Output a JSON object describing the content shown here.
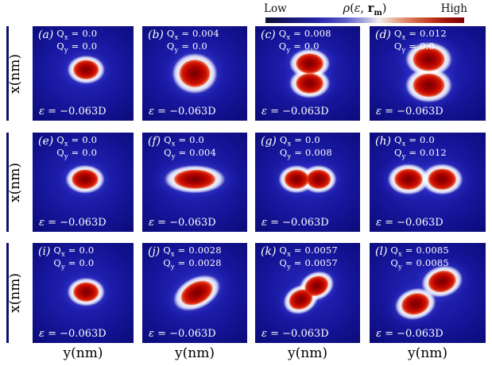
{
  "chart_data": {
    "type": "heatmap",
    "description": "4x3 grid of 2D probability-density heatmaps (blue-white-red colormap) for varying Qx, Qy",
    "title_parts": {
      "rho": "ρ",
      "lparen": "(",
      "eps": "ε",
      "comma": ", ",
      "r": "r",
      "msub": "m",
      "rparen": ")"
    },
    "colorbar": {
      "low_label": "Low",
      "high_label": "High",
      "gradient_stops": [
        "#0d0d33 0%",
        "#16166e 12%",
        "#2323a8 26%",
        "#5a5ac8 40%",
        "#a9a9dc 50%",
        "#f2efe9 57%",
        "#e8b39a 65%",
        "#d97757 73%",
        "#c23b22 83%",
        "#9b1105 92%",
        "#7e0000 100%"
      ]
    },
    "xlabel": "y(nm)",
    "ylabel": "x(nm)",
    "shared": {
      "q": "Q",
      "sub_x": "x",
      "sub_y": "y",
      "eq": " = ",
      "eps_sym": "ε"
    },
    "panel_background": "#0d0d80",
    "lobe_core_color": "#a80000",
    "panels": [
      {
        "id": "a",
        "label": "(a)",
        "qx": "0.0",
        "qy": "0.0",
        "epsilon_value": "−0.063D",
        "lobes": [
          {
            "cx": 0.53,
            "cy": 0.46,
            "rx": 0.125,
            "ry": 0.095,
            "rot": 0
          }
        ]
      },
      {
        "id": "b",
        "label": "(b)",
        "qx": "0.004",
        "qy": "0.0",
        "epsilon_value": "−0.063D",
        "lobes": [
          {
            "cx": 0.5,
            "cy": 0.5,
            "rx": 0.145,
            "ry": 0.13,
            "rot": 0
          }
        ]
      },
      {
        "id": "c",
        "label": "(c)",
        "qx": "0.008",
        "qy": "0.0",
        "epsilon_value": "−0.063D",
        "lobes": [
          {
            "cx": 0.52,
            "cy": 0.395,
            "rx": 0.13,
            "ry": 0.095,
            "rot": 0
          },
          {
            "cx": 0.52,
            "cy": 0.605,
            "rx": 0.13,
            "ry": 0.095,
            "rot": 0
          }
        ]
      },
      {
        "id": "d",
        "label": "(d)",
        "qx": "0.012",
        "qy": "0.0",
        "epsilon_value": "−0.063D",
        "lobes": [
          {
            "cx": 0.51,
            "cy": 0.35,
            "rx": 0.135,
            "ry": 0.1,
            "rot": 0
          },
          {
            "cx": 0.51,
            "cy": 0.625,
            "rx": 0.135,
            "ry": 0.1,
            "rot": 0
          }
        ]
      },
      {
        "id": "e",
        "label": "(e)",
        "qx": "0.0",
        "qy": "0.0",
        "epsilon_value": "−0.063D",
        "lobes": [
          {
            "cx": 0.52,
            "cy": 0.47,
            "rx": 0.13,
            "ry": 0.095,
            "rot": 0
          }
        ]
      },
      {
        "id": "f",
        "label": "(f)",
        "qx": "0.0",
        "qy": "0.004",
        "epsilon_value": "−0.063D",
        "lobes": [
          {
            "cx": 0.5,
            "cy": 0.47,
            "rx": 0.195,
            "ry": 0.09,
            "rot": 0
          }
        ]
      },
      {
        "id": "g",
        "label": "(g)",
        "qx": "0.0",
        "qy": "0.008",
        "epsilon_value": "−0.063D",
        "lobes": [
          {
            "cx": 0.395,
            "cy": 0.47,
            "rx": 0.115,
            "ry": 0.09,
            "rot": 0
          },
          {
            "cx": 0.605,
            "cy": 0.47,
            "rx": 0.115,
            "ry": 0.09,
            "rot": 0
          }
        ]
      },
      {
        "id": "h",
        "label": "(h)",
        "qx": "0.0",
        "qy": "0.012",
        "epsilon_value": "−0.063D",
        "lobes": [
          {
            "cx": 0.335,
            "cy": 0.47,
            "rx": 0.12,
            "ry": 0.09,
            "rot": 0
          },
          {
            "cx": 0.625,
            "cy": 0.47,
            "rx": 0.12,
            "ry": 0.09,
            "rot": 0
          }
        ]
      },
      {
        "id": "i",
        "label": "(i)",
        "qx": "0.0",
        "qy": "0.0",
        "epsilon_value": "−0.063D",
        "lobes": [
          {
            "cx": 0.53,
            "cy": 0.49,
            "rx": 0.125,
            "ry": 0.095,
            "rot": 0
          }
        ]
      },
      {
        "id": "j",
        "label": "(j)",
        "qx": "0.0028",
        "qy": "0.0028",
        "epsilon_value": "−0.063D",
        "lobes": [
          {
            "cx": 0.52,
            "cy": 0.5,
            "rx": 0.16,
            "ry": 0.1,
            "rot": -27
          }
        ]
      },
      {
        "id": "k",
        "label": "(k)",
        "qx": "0.0057",
        "qy": "0.0057",
        "epsilon_value": "−0.063D",
        "lobes": [
          {
            "cx": 0.435,
            "cy": 0.565,
            "rx": 0.115,
            "ry": 0.09,
            "rot": -25
          },
          {
            "cx": 0.585,
            "cy": 0.43,
            "rx": 0.115,
            "ry": 0.09,
            "rot": -25
          }
        ]
      },
      {
        "id": "l",
        "label": "(l)",
        "qx": "0.0085",
        "qy": "0.0085",
        "epsilon_value": "−0.063D",
        "lobes": [
          {
            "cx": 0.395,
            "cy": 0.61,
            "rx": 0.12,
            "ry": 0.09,
            "rot": -15
          },
          {
            "cx": 0.625,
            "cy": 0.385,
            "rx": 0.12,
            "ry": 0.09,
            "rot": -15
          }
        ]
      }
    ]
  }
}
